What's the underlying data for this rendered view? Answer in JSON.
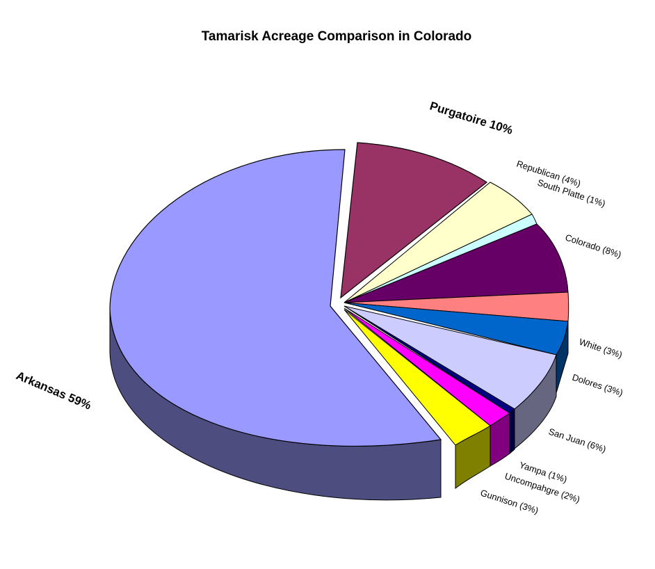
{
  "chart_data": {
    "type": "pie",
    "title": "Tamarisk Acreage Comparison in Colorado",
    "slices": [
      {
        "key": "arkansas",
        "label": "Arkansas 59%",
        "value": 59,
        "color": "#9999ff",
        "exploded": true
      },
      {
        "key": "purgatoire",
        "label": "Purgatoire 10%",
        "value": 10,
        "color": "#993366",
        "exploded": true
      },
      {
        "key": "republican",
        "label": "Republican (4%)",
        "value": 4,
        "color": "#ffffcc"
      },
      {
        "key": "south-platte",
        "label": "South Platte (1%)",
        "value": 1,
        "color": "#ccffff"
      },
      {
        "key": "colorado",
        "label": "Colorado (8%)",
        "value": 8,
        "color": "#660066"
      },
      {
        "key": "unlabeled",
        "label": "",
        "value": 3,
        "color": "#ff8080"
      },
      {
        "key": "white",
        "label": "White (3%)",
        "value": 3,
        "color": "#0066cc"
      },
      {
        "key": "dolores",
        "label": "Dolores (3%)",
        "value": 3,
        "color": "#ccccff"
      },
      {
        "key": "san-juan",
        "label": "San Juan (6%)",
        "value": 6,
        "color": "#ccccff"
      },
      {
        "key": "yampa",
        "label": "Yampa (1%)",
        "value": 1,
        "color": "#000080"
      },
      {
        "key": "uncompahgre",
        "label": "Uncompahgre (2%)",
        "value": 2,
        "color": "#ff00ff"
      },
      {
        "key": "gunnison",
        "label": "Gunnison (3%)",
        "value": 3,
        "color": "#ffff00"
      }
    ]
  }
}
